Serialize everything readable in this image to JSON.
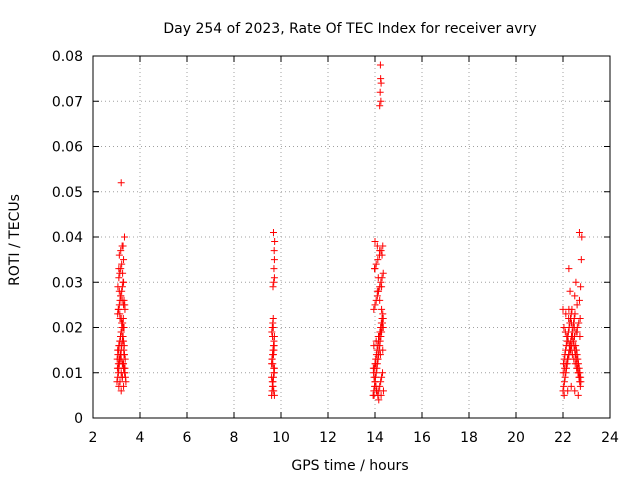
{
  "chart_data": {
    "type": "scatter",
    "title": "Day 254 of 2023, Rate Of TEC Index for receiver avry",
    "xlabel": "GPS time / hours",
    "ylabel": "ROTI / TECUs",
    "xlim": [
      2,
      24
    ],
    "ylim": [
      0,
      0.08
    ],
    "xticks": [
      2,
      4,
      6,
      8,
      10,
      12,
      14,
      16,
      18,
      20,
      22,
      24
    ],
    "yticks": [
      0,
      0.01,
      0.02,
      0.03,
      0.04,
      0.05,
      0.06,
      0.07,
      0.08
    ],
    "ytick_labels": [
      "0",
      "0.01",
      "0.02",
      "0.03",
      "0.04",
      "0.05",
      "0.06",
      "0.07",
      "0.08"
    ],
    "grid": true,
    "marker": "plus",
    "color": "#ff0000",
    "series": [
      {
        "x": [
          3.02,
          3.05,
          3.08,
          3.1,
          3.12,
          3.15,
          3.18,
          3.2,
          3.22,
          3.25,
          3.28,
          3.3,
          3.32,
          3.35,
          3.38,
          3.4,
          3.03,
          3.06,
          3.09,
          3.11,
          3.14,
          3.17,
          3.2,
          3.23,
          3.26,
          3.29,
          3.31,
          3.34,
          3.37,
          3.05,
          3.08,
          3.12,
          3.15,
          3.18,
          3.22,
          3.25,
          3.28,
          3.32,
          3.35,
          3.1,
          3.14,
          3.18,
          3.22,
          3.26,
          3.3,
          3.04,
          3.08,
          3.12,
          3.16,
          3.2,
          3.24,
          3.28,
          3.32,
          3.36,
          3.1,
          3.15,
          3.2,
          3.25,
          3.3,
          3.12,
          3.18,
          3.24,
          3.3,
          3.15,
          3.22,
          3.28,
          3.2,
          3.26,
          3.3,
          3.33,
          3.05,
          3.1,
          3.15,
          3.2,
          3.25,
          3.3,
          3.35,
          3.08,
          3.14,
          3.2,
          3.26,
          3.32,
          3.06,
          3.12,
          3.18,
          3.24,
          3.3,
          3.36,
          3.28,
          3.34,
          3.1,
          3.2
        ],
        "y": [
          0.008,
          0.009,
          0.01,
          0.011,
          0.012,
          0.013,
          0.014,
          0.015,
          0.016,
          0.017,
          0.018,
          0.012,
          0.011,
          0.01,
          0.009,
          0.008,
          0.013,
          0.014,
          0.015,
          0.016,
          0.017,
          0.018,
          0.019,
          0.02,
          0.021,
          0.022,
          0.015,
          0.014,
          0.013,
          0.023,
          0.024,
          0.025,
          0.026,
          0.027,
          0.028,
          0.029,
          0.03,
          0.026,
          0.025,
          0.031,
          0.032,
          0.033,
          0.034,
          0.032,
          0.03,
          0.011,
          0.012,
          0.013,
          0.014,
          0.01,
          0.009,
          0.012,
          0.014,
          0.011,
          0.007,
          0.008,
          0.006,
          0.009,
          0.007,
          0.036,
          0.037,
          0.038,
          0.035,
          0.022,
          0.021,
          0.02,
          0.019,
          0.018,
          0.017,
          0.016,
          0.015,
          0.016,
          0.017,
          0.013,
          0.012,
          0.011,
          0.01,
          0.024,
          0.023,
          0.022,
          0.021,
          0.02,
          0.029,
          0.028,
          0.027,
          0.026,
          0.025,
          0.024,
          0.038,
          0.04,
          0.033,
          0.052
        ]
      },
      {
        "x": [
          9.6,
          9.62,
          9.64,
          9.66,
          9.68,
          9.7,
          9.72,
          9.6,
          9.62,
          9.64,
          9.66,
          9.68,
          9.7,
          9.72,
          9.61,
          9.63,
          9.65,
          9.67,
          9.69,
          9.71,
          9.6,
          9.63,
          9.66,
          9.69,
          9.72,
          9.62,
          9.65,
          9.68,
          9.71,
          9.64,
          9.67,
          9.7,
          9.66,
          9.69,
          9.72,
          9.7,
          9.72,
          9.71,
          9.73,
          9.68
        ],
        "y": [
          0.005,
          0.006,
          0.007,
          0.008,
          0.009,
          0.01,
          0.011,
          0.012,
          0.013,
          0.014,
          0.015,
          0.016,
          0.017,
          0.018,
          0.019,
          0.02,
          0.021,
          0.022,
          0.011,
          0.01,
          0.009,
          0.008,
          0.007,
          0.006,
          0.005,
          0.013,
          0.012,
          0.014,
          0.016,
          0.018,
          0.02,
          0.015,
          0.029,
          0.03,
          0.031,
          0.033,
          0.035,
          0.037,
          0.039,
          0.041
        ]
      },
      {
        "x": [
          13.92,
          13.95,
          13.98,
          14.0,
          14.02,
          14.05,
          14.08,
          14.1,
          14.12,
          14.15,
          14.18,
          14.2,
          14.22,
          14.25,
          14.28,
          14.3,
          14.32,
          14.35,
          13.94,
          13.97,
          14.0,
          14.03,
          14.06,
          14.09,
          14.12,
          14.15,
          14.18,
          14.21,
          14.24,
          14.27,
          14.3,
          14.33,
          13.96,
          14.0,
          14.04,
          14.08,
          14.12,
          14.16,
          14.2,
          14.24,
          14.28,
          14.32,
          13.95,
          14.0,
          14.05,
          14.1,
          14.15,
          14.2,
          14.25,
          14.3,
          14.35,
          13.98,
          14.05,
          14.12,
          14.19,
          14.26,
          14.33,
          14.0,
          14.1,
          14.2,
          14.3,
          13.93,
          14.03,
          14.13,
          14.23,
          14.33,
          13.95,
          14.05,
          14.15,
          14.25,
          14.35,
          14.1,
          14.2,
          14.28,
          14.2,
          14.25,
          14.22,
          14.26,
          14.24,
          14.23,
          13.96,
          14.06,
          14.16,
          14.26,
          14.36,
          14.0,
          14.14,
          14.28
        ],
        "y": [
          0.005,
          0.006,
          0.007,
          0.008,
          0.009,
          0.01,
          0.011,
          0.012,
          0.013,
          0.014,
          0.015,
          0.016,
          0.017,
          0.018,
          0.019,
          0.02,
          0.021,
          0.022,
          0.01,
          0.011,
          0.012,
          0.013,
          0.014,
          0.015,
          0.016,
          0.017,
          0.018,
          0.019,
          0.02,
          0.021,
          0.022,
          0.023,
          0.009,
          0.008,
          0.007,
          0.006,
          0.005,
          0.006,
          0.007,
          0.008,
          0.009,
          0.01,
          0.024,
          0.025,
          0.026,
          0.027,
          0.028,
          0.029,
          0.03,
          0.031,
          0.032,
          0.033,
          0.034,
          0.035,
          0.036,
          0.037,
          0.038,
          0.039,
          0.038,
          0.037,
          0.036,
          0.011,
          0.012,
          0.013,
          0.014,
          0.015,
          0.016,
          0.017,
          0.018,
          0.019,
          0.02,
          0.028,
          0.026,
          0.024,
          0.069,
          0.07,
          0.072,
          0.074,
          0.075,
          0.078,
          0.005,
          0.006,
          0.004,
          0.005,
          0.006,
          0.033,
          0.031,
          0.029
        ]
      },
      {
        "x": [
          22.0,
          22.03,
          22.06,
          22.09,
          22.12,
          22.15,
          22.18,
          22.21,
          22.24,
          22.27,
          22.3,
          22.33,
          22.36,
          22.39,
          22.42,
          22.45,
          22.48,
          22.51,
          22.54,
          22.57,
          22.6,
          22.63,
          22.66,
          22.69,
          22.72,
          22.75,
          22.02,
          22.05,
          22.08,
          22.11,
          22.14,
          22.17,
          22.2,
          22.23,
          22.26,
          22.29,
          22.32,
          22.35,
          22.38,
          22.41,
          22.44,
          22.47,
          22.5,
          22.53,
          22.56,
          22.59,
          22.62,
          22.65,
          22.68,
          22.71,
          22.74,
          22.04,
          22.1,
          22.16,
          22.22,
          22.28,
          22.34,
          22.4,
          22.46,
          22.52,
          22.58,
          22.64,
          22.7,
          22.76,
          22.01,
          22.07,
          22.13,
          22.19,
          22.25,
          22.31,
          22.37,
          22.43,
          22.49,
          22.55,
          22.61,
          22.67,
          22.73,
          22.0,
          22.12,
          22.24,
          22.36,
          22.48,
          22.6,
          22.72,
          22.05,
          22.2,
          22.35,
          22.5,
          22.65,
          22.3,
          22.5,
          22.7,
          22.25,
          22.55,
          22.75,
          22.78,
          22.8,
          22.7,
          22.6,
          22.25
        ],
        "y": [
          0.006,
          0.007,
          0.008,
          0.009,
          0.01,
          0.011,
          0.012,
          0.013,
          0.014,
          0.015,
          0.016,
          0.017,
          0.018,
          0.019,
          0.02,
          0.021,
          0.022,
          0.023,
          0.016,
          0.015,
          0.014,
          0.013,
          0.012,
          0.011,
          0.01,
          0.009,
          0.012,
          0.013,
          0.014,
          0.015,
          0.016,
          0.017,
          0.018,
          0.019,
          0.02,
          0.021,
          0.022,
          0.023,
          0.024,
          0.018,
          0.017,
          0.016,
          0.015,
          0.014,
          0.013,
          0.012,
          0.011,
          0.01,
          0.009,
          0.008,
          0.007,
          0.02,
          0.019,
          0.018,
          0.017,
          0.016,
          0.015,
          0.014,
          0.013,
          0.012,
          0.011,
          0.01,
          0.009,
          0.008,
          0.01,
          0.011,
          0.012,
          0.013,
          0.014,
          0.015,
          0.016,
          0.017,
          0.018,
          0.019,
          0.02,
          0.021,
          0.022,
          0.024,
          0.023,
          0.022,
          0.021,
          0.02,
          0.019,
          0.018,
          0.005,
          0.006,
          0.007,
          0.006,
          0.005,
          0.028,
          0.027,
          0.026,
          0.033,
          0.03,
          0.029,
          0.035,
          0.04,
          0.041,
          0.025,
          0.024
        ]
      }
    ]
  }
}
